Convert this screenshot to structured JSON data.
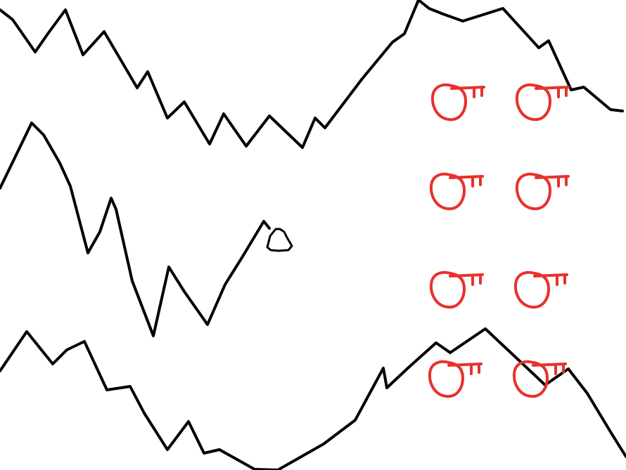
{
  "scene": {
    "background": "#ffffff",
    "line_color": "#000000",
    "key_color": "#e8312a",
    "terrain_lines": [
      "top-terrain-line",
      "middle-terrain-line",
      "bottom-terrain-line"
    ],
    "player": {
      "icon": "player-blob-icon"
    },
    "keys": {
      "icon": "key-icon",
      "count": 8
    }
  }
}
